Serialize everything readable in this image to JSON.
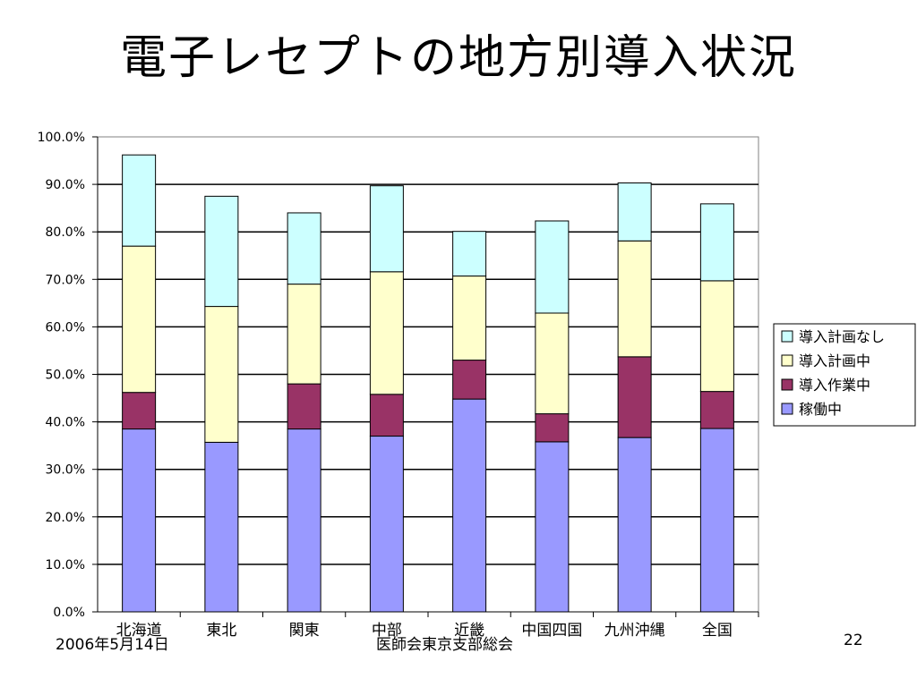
{
  "slide": {
    "title": "電子レセプトの地方別導入状況",
    "footer_date": "2006年5月14日",
    "footer_org": "医師会東京支部総会",
    "page_number": "22"
  },
  "chart_data": {
    "type": "bar",
    "stacked": true,
    "categories": [
      "北海道",
      "東北",
      "関東",
      "中部",
      "近畿",
      "中国四国",
      "九州沖縄",
      "全国"
    ],
    "series": [
      {
        "name": "稼働中",
        "color": "#9999ff",
        "values": [
          38.5,
          35.7,
          38.5,
          37.0,
          44.8,
          35.8,
          36.7,
          38.6
        ]
      },
      {
        "name": "導入作業中",
        "color": "#993366",
        "values": [
          7.7,
          0.0,
          9.5,
          8.8,
          8.2,
          5.9,
          17.0,
          7.8
        ]
      },
      {
        "name": "導入計画中",
        "color": "#ffffcc",
        "values": [
          30.8,
          28.6,
          21.0,
          25.8,
          17.7,
          21.2,
          24.4,
          23.3
        ]
      },
      {
        "name": "導入計画なし",
        "color": "#ccffff",
        "values": [
          19.2,
          23.2,
          15.0,
          18.1,
          9.4,
          19.4,
          12.2,
          16.2
        ]
      }
    ],
    "ylim": [
      0,
      100
    ],
    "yticks": [
      "0.0%",
      "10.0%",
      "20.0%",
      "30.0%",
      "40.0%",
      "50.0%",
      "60.0%",
      "70.0%",
      "80.0%",
      "90.0%",
      "100.0%"
    ],
    "grid": true,
    "legend_position": "right"
  }
}
